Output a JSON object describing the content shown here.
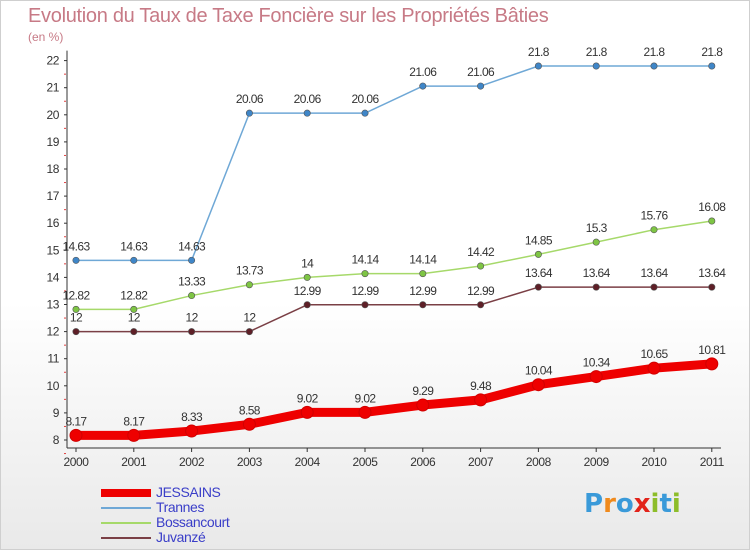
{
  "title": "Evolution du Taux de Taxe Foncière sur les Propriétés Bâties",
  "subtitle": "(en %)",
  "logo": {
    "text": "Proxiti",
    "letter_colors": [
      "#3a9ad9",
      "#f08a1c",
      "#3a9ad9",
      "#e2231a",
      "#8dbd2a",
      "#3a9ad9",
      "#8dbd2a"
    ]
  },
  "chart_data": {
    "type": "line",
    "title": "Evolution du Taux de Taxe Foncière sur les Propriétés Bâties",
    "ylabel": "(en %)",
    "xlabel": "",
    "x": [
      "2000",
      "2001",
      "2002",
      "2003",
      "2004",
      "2005",
      "2006",
      "2007",
      "2008",
      "2009",
      "2010",
      "2011"
    ],
    "ylim": [
      8,
      22
    ],
    "yticks": [
      8,
      9,
      10,
      11,
      12,
      13,
      14,
      15,
      16,
      17,
      18,
      19,
      20,
      21,
      22
    ],
    "grid": false,
    "legend_position": "bottom-left",
    "series": [
      {
        "name": "JESSAINS",
        "color": "#ee0000",
        "values": [
          8.17,
          8.17,
          8.33,
          8.58,
          9.02,
          9.02,
          9.29,
          9.48,
          10.04,
          10.34,
          10.65,
          10.81
        ],
        "labels": [
          "8.17",
          "8.17",
          "8.33",
          "8.58",
          "9.02",
          "9.02",
          "9.29",
          "9.48",
          "10.04",
          "10.34",
          "10.65",
          "10.81"
        ]
      },
      {
        "name": "Trannes",
        "color": "#6fa8d6",
        "marker": "#3f86c8",
        "values": [
          14.63,
          14.63,
          14.63,
          20.06,
          20.06,
          20.06,
          21.06,
          21.06,
          21.8,
          21.8,
          21.8,
          21.8
        ],
        "labels": [
          "14.63",
          "14.63",
          "14.63",
          "20.06",
          "20.06",
          "20.06",
          "21.06",
          "21.06",
          "21.8",
          "21.8",
          "21.8",
          "21.8"
        ]
      },
      {
        "name": "Bossancourt",
        "color": "#a6d96a",
        "marker": "#7ec544",
        "values": [
          12.82,
          12.82,
          13.33,
          13.73,
          14,
          14.14,
          14.14,
          14.42,
          14.85,
          15.3,
          15.76,
          16.08
        ],
        "labels": [
          "12.82",
          "12.82",
          "13.33",
          "13.73",
          "14",
          "14.14",
          "14.14",
          "14.42",
          "14.85",
          "15.3",
          "15.76",
          "16.08"
        ]
      },
      {
        "name": "Juvanzé",
        "color": "#7a3f45",
        "marker": "#5e1f27",
        "values": [
          12,
          12,
          12,
          12,
          12.99,
          12.99,
          12.99,
          12.99,
          13.64,
          13.64,
          13.64,
          13.64
        ],
        "labels": [
          "12",
          "12",
          "12",
          "12",
          "12.99",
          "12.99",
          "12.99",
          "12.99",
          "13.64",
          "13.64",
          "13.64",
          "13.64"
        ]
      }
    ]
  }
}
